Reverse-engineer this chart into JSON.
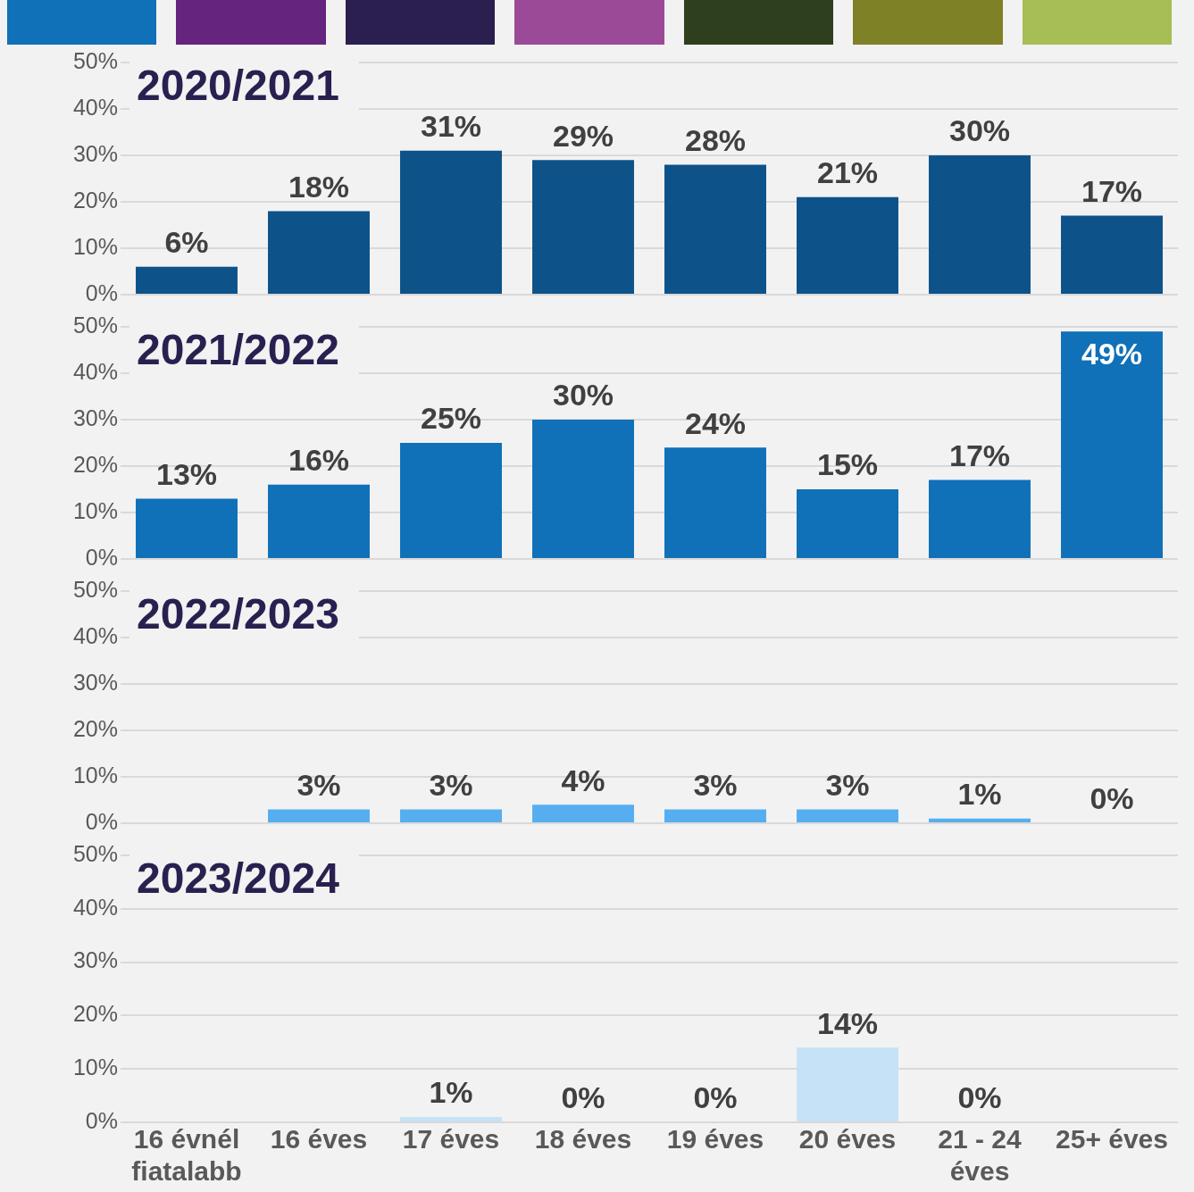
{
  "chart_data": [
    {
      "type": "bar",
      "title": "2020/2021",
      "values": [
        6,
        18,
        31,
        29,
        28,
        21,
        30,
        17
      ],
      "value_labels": [
        "6%",
        "18%",
        "31%",
        "29%",
        "28%",
        "21%",
        "30%",
        "17%"
      ],
      "color": "#0d5289",
      "ylim": [
        0,
        50
      ],
      "yticks": [
        {
          "value": 0,
          "label": "0%"
        },
        {
          "value": 10,
          "label": "10%"
        },
        {
          "value": 20,
          "label": "20%"
        },
        {
          "value": 30,
          "label": "30%"
        },
        {
          "value": 40,
          "label": "40%"
        },
        {
          "value": 50,
          "label": "50%"
        }
      ],
      "grid": "y",
      "legend": false,
      "tick_labels": "y"
    },
    {
      "type": "bar",
      "title": "2021/2022",
      "values": [
        13,
        16,
        25,
        30,
        24,
        15,
        17,
        49
      ],
      "value_labels": [
        "13%",
        "16%",
        "25%",
        "30%",
        "24%",
        "15%",
        "17%",
        "49%"
      ],
      "color": "#1070b8",
      "ylim": [
        0,
        50
      ],
      "yticks": [
        {
          "value": 0,
          "label": "0%"
        },
        {
          "value": 10,
          "label": "10%"
        },
        {
          "value": 20,
          "label": "20%"
        },
        {
          "value": 30,
          "label": "30%"
        },
        {
          "value": 40,
          "label": "40%"
        },
        {
          "value": 50,
          "label": "50%"
        }
      ],
      "grid": "y",
      "legend": false,
      "tick_labels": "y"
    },
    {
      "type": "bar",
      "title": "2022/2023",
      "values": [
        null,
        3,
        3,
        4,
        3,
        3,
        1,
        0
      ],
      "value_labels": [
        null,
        "3%",
        "3%",
        "4%",
        "3%",
        "3%",
        "1%",
        "0%"
      ],
      "color": "#56aef0",
      "ylim": [
        0,
        50
      ],
      "yticks": [
        {
          "value": 0,
          "label": "0%"
        },
        {
          "value": 10,
          "label": "10%"
        },
        {
          "value": 20,
          "label": "20%"
        },
        {
          "value": 30,
          "label": "30%"
        },
        {
          "value": 40,
          "label": "40%"
        },
        {
          "value": 50,
          "label": "50%"
        }
      ],
      "grid": "y",
      "legend": false,
      "tick_labels": "y"
    },
    {
      "type": "bar",
      "title": "2023/2024",
      "categories": [
        "16 évnél fiatalabb",
        "16 éves",
        "17 éves",
        "18 éves",
        "19 éves",
        "20 éves",
        "21 - 24 éves",
        "25+ éves"
      ],
      "values": [
        null,
        null,
        1,
        0,
        0,
        14,
        0,
        null
      ],
      "value_labels": [
        null,
        null,
        "1%",
        "0%",
        "0%",
        "14%",
        "0%",
        null
      ],
      "color": "#c5e2f7",
      "ylim": [
        0,
        50
      ],
      "yticks": [
        {
          "value": 0,
          "label": "0%"
        },
        {
          "value": 10,
          "label": "10%"
        },
        {
          "value": 20,
          "label": "20%"
        },
        {
          "value": 30,
          "label": "30%"
        },
        {
          "value": 40,
          "label": "40%"
        },
        {
          "value": 50,
          "label": "50%"
        }
      ],
      "grid": "y",
      "legend": false
    }
  ]
}
